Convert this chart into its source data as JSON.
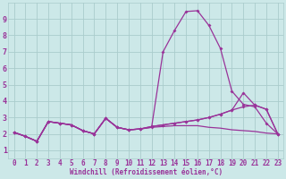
{
  "xlabel": "Windchill (Refroidissement éolien,°C)",
  "background_color": "#cce8e8",
  "grid_color": "#aacccc",
  "line_color": "#993399",
  "xlim": [
    -0.5,
    23.5
  ],
  "ylim": [
    0.5,
    10.0
  ],
  "xticks": [
    0,
    1,
    2,
    3,
    4,
    5,
    6,
    7,
    8,
    9,
    10,
    11,
    12,
    13,
    14,
    15,
    16,
    17,
    18,
    19,
    20,
    21,
    22,
    23
  ],
  "yticks": [
    1,
    2,
    3,
    4,
    5,
    6,
    7,
    8,
    9
  ],
  "series": [
    {
      "y": [
        2.1,
        1.85,
        1.55,
        2.75,
        2.65,
        2.55,
        2.2,
        2.0,
        2.95,
        2.4,
        2.25,
        2.3,
        2.4,
        2.45,
        2.5,
        2.5,
        2.5,
        2.4,
        2.35,
        2.25,
        2.2,
        2.15,
        2.05,
        2.0
      ],
      "marker": false,
      "linewidth": 0.9
    },
    {
      "y": [
        2.1,
        1.85,
        1.55,
        2.75,
        2.65,
        2.55,
        2.2,
        2.0,
        2.95,
        2.4,
        2.25,
        2.3,
        2.4,
        7.0,
        8.3,
        9.45,
        9.5,
        8.6,
        7.2,
        4.6,
        3.8,
        3.65,
        2.65,
        2.0
      ],
      "marker": true,
      "linewidth": 0.9
    },
    {
      "y": [
        2.1,
        1.85,
        1.55,
        2.75,
        2.65,
        2.55,
        2.2,
        2.0,
        2.95,
        2.4,
        2.25,
        2.3,
        2.45,
        2.55,
        2.65,
        2.75,
        2.85,
        3.0,
        3.2,
        3.45,
        3.65,
        3.75,
        3.5,
        2.0
      ],
      "marker": true,
      "linewidth": 0.9
    },
    {
      "y": [
        2.1,
        1.85,
        1.55,
        2.75,
        2.65,
        2.55,
        2.2,
        2.0,
        2.95,
        2.4,
        2.25,
        2.3,
        2.45,
        2.55,
        2.65,
        2.75,
        2.85,
        3.0,
        3.2,
        3.45,
        4.5,
        3.75,
        3.5,
        2.0
      ],
      "marker": true,
      "linewidth": 0.9
    }
  ],
  "tick_fontsize": 5.5,
  "xlabel_fontsize": 5.5
}
